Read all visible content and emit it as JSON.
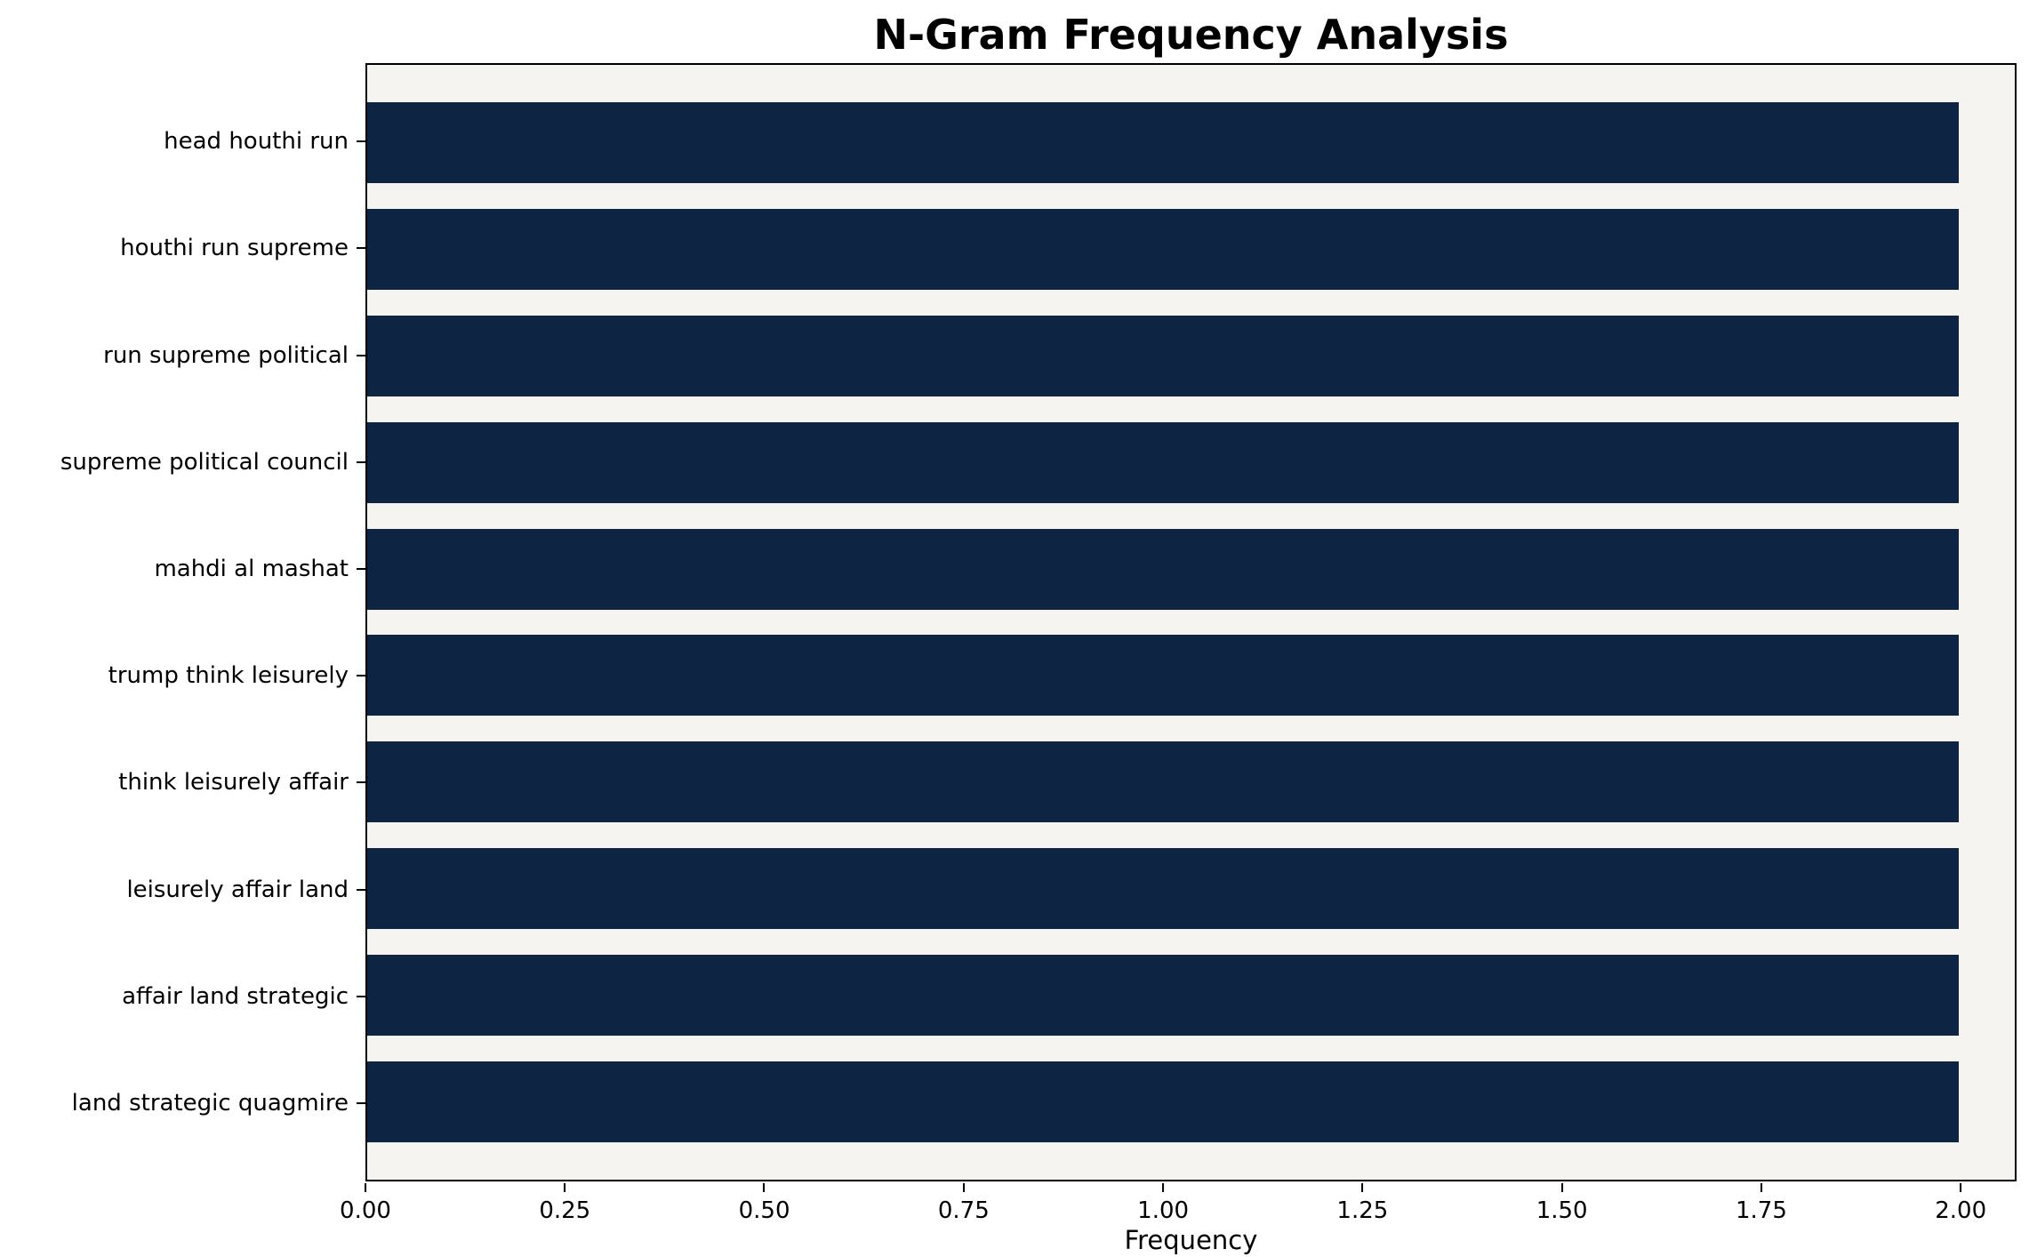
{
  "chart_data": {
    "type": "bar",
    "orientation": "horizontal",
    "title": "N-Gram Frequency Analysis",
    "xlabel": "Frequency",
    "ylabel": "",
    "categories": [
      "head houthi run",
      "houthi run supreme",
      "run supreme political",
      "supreme political council",
      "mahdi al mashat",
      "trump think leisurely",
      "think leisurely affair",
      "leisurely affair land",
      "affair land strategic",
      "land strategic quagmire"
    ],
    "values": [
      2,
      2,
      2,
      2,
      2,
      2,
      2,
      2,
      2,
      2
    ],
    "xlim": [
      0,
      2.07
    ],
    "xticks": [
      0,
      0.25,
      0.5,
      0.75,
      1.0,
      1.25,
      1.5,
      1.75,
      2.0
    ],
    "xtick_labels": [
      "0.00",
      "0.25",
      "0.50",
      "0.75",
      "1.00",
      "1.25",
      "1.50",
      "1.75",
      "2.00"
    ],
    "grid": false,
    "legend": null,
    "bar_color": "#0e2443",
    "plot_bg": "#f5f4f1",
    "figure_bg": "#ffffff"
  }
}
